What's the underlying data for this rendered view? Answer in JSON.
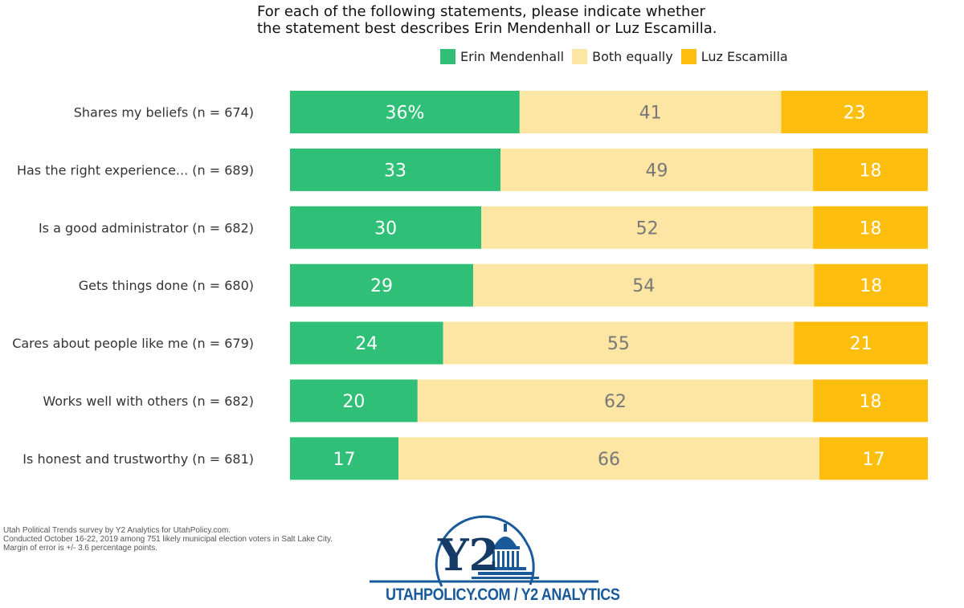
{
  "chart_data": {
    "type": "bar",
    "orientation": "horizontal",
    "stacked": true,
    "title": [
      "For each of the following statements, please indicate whether",
      "the statement best describes Erin Mendenhall or Luz Escamilla."
    ],
    "categories": [
      "Shares my beliefs (n = 674)",
      "Has the right experience... (n = 689)",
      "Is a good administrator (n = 682)",
      "Gets things done (n = 680)",
      "Cares about people like me (n = 679)",
      "Works well with others (n = 682)",
      "Is honest and trustworthy (n = 681)"
    ],
    "series": [
      {
        "name": "Erin Mendenhall",
        "color": "#2fbf76",
        "label_color": "#ffffff",
        "values": [
          36,
          33,
          30,
          29,
          24,
          20,
          17
        ],
        "labels": [
          "36%",
          "33",
          "30",
          "29",
          "24",
          "20",
          "17"
        ]
      },
      {
        "name": "Both equally",
        "color": "#fde5a3",
        "label_color": "#777777",
        "values": [
          41,
          49,
          52,
          54,
          55,
          62,
          66
        ],
        "labels": [
          "41",
          "49",
          "52",
          "54",
          "55",
          "62",
          "66"
        ]
      },
      {
        "name": "Luz Escamilla",
        "color": "#fdbe0d",
        "label_color": "#ffffff",
        "values": [
          23,
          18,
          18,
          18,
          21,
          18,
          17
        ],
        "labels": [
          "23",
          "18",
          "18",
          "18",
          "21",
          "18",
          "17"
        ]
      }
    ],
    "xlim": [
      0,
      100
    ],
    "legend_position": "top-right",
    "grid": false
  },
  "notes": [
    "Utah Political Trends survey by Y2 Analytics for UtahPolicy.com.",
    "Conducted October 16-22, 2019 among 751 likely municipal election voters in Salt Lake City.",
    "Margin of error is +/- 3.6 percentage points."
  ],
  "logo": {
    "mark": "Y2",
    "text": "UTAHPOLICY.COM / Y2 ANALYTICS",
    "color": "#1a5a9a",
    "dark_color": "#143a66"
  }
}
